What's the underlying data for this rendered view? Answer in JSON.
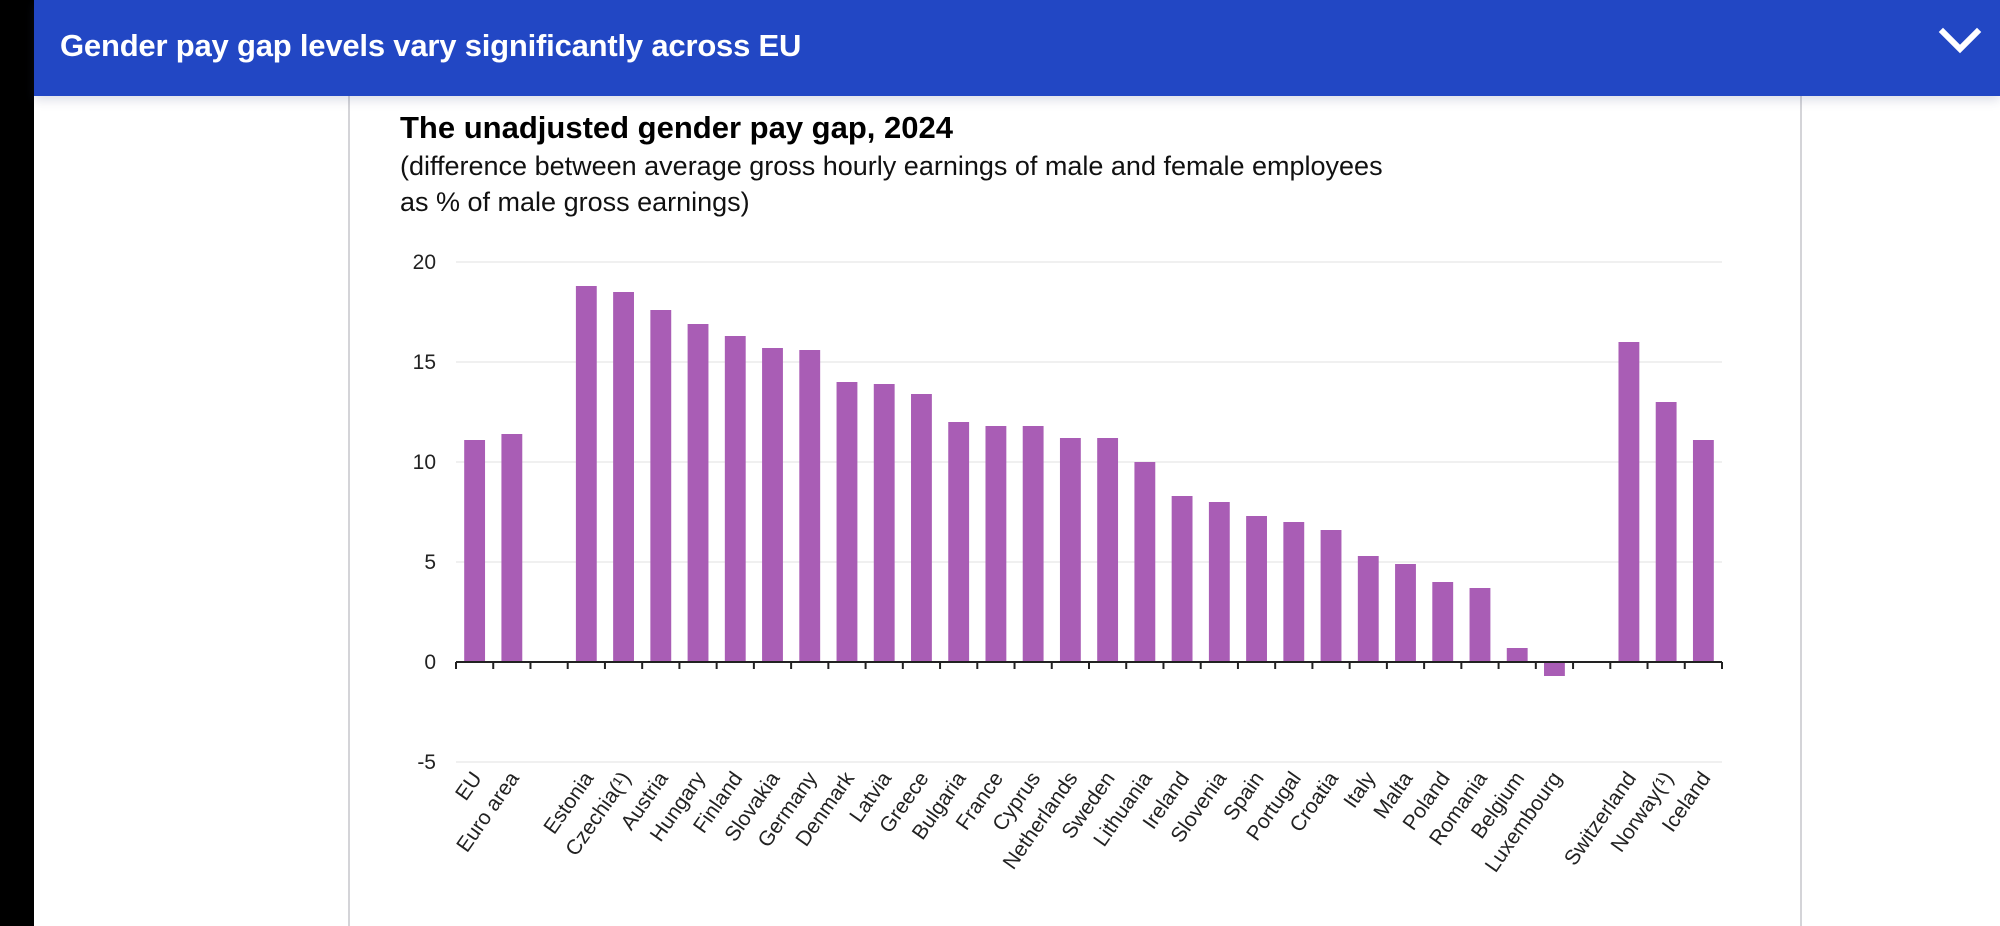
{
  "header": {
    "title": "Gender pay gap levels vary significantly across EU",
    "toggle_icon": "chevron-down-icon"
  },
  "chart_data": {
    "type": "bar",
    "title": "The unadjusted gender pay gap, 2024",
    "subtitle_lines": [
      "(difference between average gross hourly earnings of male and female employees",
      "as % of male gross earnings)"
    ],
    "xlabel": "",
    "ylabel": "",
    "ylim": [
      -5,
      20
    ],
    "yticks": [
      20,
      15,
      10,
      5,
      0,
      -5
    ],
    "grid": true,
    "legend": "none",
    "bar_color": "#a95db5",
    "categories": [
      "EU",
      "Euro area",
      "",
      "Estonia",
      "Czechia(¹)",
      "Austria",
      "Hungary",
      "Finland",
      "Slovakia",
      "Germany",
      "Denmark",
      "Latvia",
      "Greece",
      "Bulgaria",
      "France",
      "Cyprus",
      "Netherlands",
      "Sweden",
      "Lithuania",
      "Ireland",
      "Slovenia",
      "Spain",
      "Portugal",
      "Croatia",
      "Italy",
      "Malta",
      "Poland",
      "Romania",
      "Belgium",
      "Luxembourg",
      "",
      "Switzerland",
      "Norway(¹)",
      "Iceland"
    ],
    "values": [
      11.1,
      11.4,
      null,
      18.8,
      18.5,
      17.6,
      16.9,
      16.3,
      15.7,
      15.6,
      14.0,
      13.9,
      13.4,
      12.0,
      11.8,
      11.8,
      11.2,
      11.2,
      10.0,
      8.3,
      8.0,
      7.3,
      7.0,
      6.6,
      5.3,
      4.9,
      4.0,
      3.7,
      0.7,
      -0.7,
      null,
      16.0,
      13.0,
      11.1
    ]
  }
}
